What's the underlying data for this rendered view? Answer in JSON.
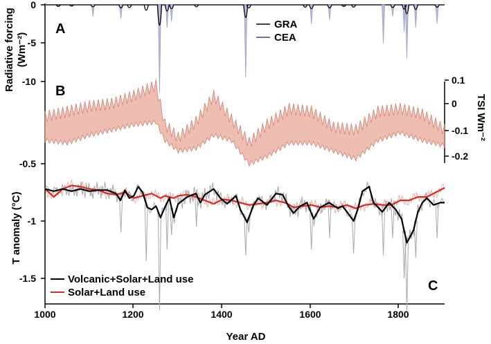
{
  "chart_data": [
    {
      "panel": "A",
      "type": "line",
      "ylabel": "Radiative forcing",
      "ylabel_unit": "(Wm⁻²)",
      "xlim": [
        1000,
        1900
      ],
      "ylim": [
        -11.5,
        0.5
      ],
      "yticks": [
        "0",
        "-5",
        "-10"
      ],
      "legend": [
        {
          "name": "GRA",
          "color": "#000000"
        },
        {
          "name": "CEA",
          "color": "#3b3f9a"
        }
      ],
      "events": [
        {
          "year": 1030,
          "depth": -0.6
        },
        {
          "year": 1060,
          "depth": -0.5
        },
        {
          "year": 1108,
          "depth": -0.7
        },
        {
          "year": 1171,
          "depth": -1.0
        },
        {
          "year": 1190,
          "depth": -0.9
        },
        {
          "year": 1228,
          "depth": -1.6
        },
        {
          "year": 1258,
          "depth": -5.5
        },
        {
          "year": 1275,
          "depth": -1.8
        },
        {
          "year": 1285,
          "depth": -1.2
        },
        {
          "year": 1341,
          "depth": -0.7
        },
        {
          "year": 1452,
          "depth": -3.5
        },
        {
          "year": 1459,
          "depth": -1.0
        },
        {
          "year": 1586,
          "depth": -0.8
        },
        {
          "year": 1600,
          "depth": -1.2
        },
        {
          "year": 1641,
          "depth": -1.0
        },
        {
          "year": 1673,
          "depth": -0.6
        },
        {
          "year": 1695,
          "depth": -0.8
        },
        {
          "year": 1783,
          "depth": -0.9
        },
        {
          "year": 1809,
          "depth": -1.3
        },
        {
          "year": 1815,
          "depth": -2.5
        },
        {
          "year": 1835,
          "depth": -1.4
        },
        {
          "year": 1883,
          "depth": -0.8
        }
      ],
      "cea_events": [
        {
          "year": 1108,
          "depth": -1.5
        },
        {
          "year": 1171,
          "depth": -1.8
        },
        {
          "year": 1258,
          "depth": -11.5
        },
        {
          "year": 1275,
          "depth": -3.0
        },
        {
          "year": 1285,
          "depth": -2.2
        },
        {
          "year": 1452,
          "depth": -9.5
        },
        {
          "year": 1600,
          "depth": -2.5
        },
        {
          "year": 1641,
          "depth": -2.0
        },
        {
          "year": 1762,
          "depth": -5.0
        },
        {
          "year": 1783,
          "depth": -1.5
        },
        {
          "year": 1809,
          "depth": -3.5
        },
        {
          "year": 1815,
          "depth": -7.0
        },
        {
          "year": 1835,
          "depth": -3.0
        },
        {
          "year": 1883,
          "depth": -2.5
        }
      ]
    },
    {
      "panel": "B",
      "type": "area",
      "ylabel": "TSI Wm⁻²",
      "xlim": [
        1000,
        1900
      ],
      "ylim": [
        -0.25,
        0.14
      ],
      "yticks": [
        "0.1",
        "0",
        "-0.1",
        "-0.2"
      ],
      "color": "#e8a898",
      "upper": [
        [
          1000,
          -0.05
        ],
        [
          1050,
          -0.03
        ],
        [
          1100,
          -0.01
        ],
        [
          1150,
          0.0
        ],
        [
          1200,
          0.03
        ],
        [
          1250,
          0.07
        ],
        [
          1270,
          -0.08
        ],
        [
          1300,
          -0.13
        ],
        [
          1340,
          -0.07
        ],
        [
          1380,
          0.03
        ],
        [
          1420,
          -0.06
        ],
        [
          1460,
          -0.15
        ],
        [
          1500,
          -0.08
        ],
        [
          1550,
          -0.02
        ],
        [
          1600,
          -0.03
        ],
        [
          1650,
          -0.09
        ],
        [
          1700,
          -0.1
        ],
        [
          1750,
          -0.03
        ],
        [
          1800,
          -0.02
        ],
        [
          1850,
          -0.04
        ],
        [
          1900,
          -0.1
        ]
      ],
      "lower": [
        [
          1000,
          -0.14
        ],
        [
          1050,
          -0.15
        ],
        [
          1100,
          -0.12
        ],
        [
          1150,
          -0.1
        ],
        [
          1200,
          -0.08
        ],
        [
          1250,
          -0.07
        ],
        [
          1270,
          -0.14
        ],
        [
          1300,
          -0.18
        ],
        [
          1340,
          -0.17
        ],
        [
          1380,
          -0.12
        ],
        [
          1420,
          -0.14
        ],
        [
          1460,
          -0.23
        ],
        [
          1500,
          -0.2
        ],
        [
          1550,
          -0.15
        ],
        [
          1600,
          -0.15
        ],
        [
          1650,
          -0.18
        ],
        [
          1700,
          -0.21
        ],
        [
          1750,
          -0.14
        ],
        [
          1800,
          -0.11
        ],
        [
          1850,
          -0.14
        ],
        [
          1900,
          -0.16
        ]
      ]
    },
    {
      "panel": "C",
      "type": "line",
      "xlabel": "Year AD",
      "ylabel": "T anomaly (°C)",
      "xlim": [
        1000,
        1900
      ],
      "ylim": [
        -1.7,
        -0.5
      ],
      "xticks": [
        "1000",
        "1200",
        "1400",
        "1600",
        "1800"
      ],
      "yticks": [
        "-0.5",
        "-1",
        "-1.5"
      ],
      "series": [
        {
          "name": "Volcanic+Solar+Land use",
          "color": "#000000",
          "points": [
            [
              1000,
              -0.72
            ],
            [
              1020,
              -0.74
            ],
            [
              1040,
              -0.72
            ],
            [
              1060,
              -0.74
            ],
            [
              1080,
              -0.72
            ],
            [
              1100,
              -0.74
            ],
            [
              1120,
              -0.73
            ],
            [
              1140,
              -0.73
            ],
            [
              1160,
              -0.76
            ],
            [
              1170,
              -0.82
            ],
            [
              1180,
              -0.73
            ],
            [
              1190,
              -0.8
            ],
            [
              1200,
              -0.78
            ],
            [
              1210,
              -0.7
            ],
            [
              1220,
              -0.75
            ],
            [
              1230,
              -0.88
            ],
            [
              1240,
              -0.9
            ],
            [
              1250,
              -0.87
            ],
            [
              1260,
              -0.97
            ],
            [
              1270,
              -0.88
            ],
            [
              1280,
              -0.8
            ],
            [
              1290,
              -0.97
            ],
            [
              1300,
              -0.85
            ],
            [
              1320,
              -0.79
            ],
            [
              1340,
              -0.76
            ],
            [
              1350,
              -0.84
            ],
            [
              1360,
              -0.77
            ],
            [
              1380,
              -0.72
            ],
            [
              1395,
              -0.8
            ],
            [
              1410,
              -0.85
            ],
            [
              1430,
              -0.78
            ],
            [
              1440,
              -0.9
            ],
            [
              1455,
              -1.01
            ],
            [
              1470,
              -0.86
            ],
            [
              1480,
              -0.8
            ],
            [
              1500,
              -0.86
            ],
            [
              1520,
              -0.76
            ],
            [
              1535,
              -0.77
            ],
            [
              1550,
              -0.88
            ],
            [
              1560,
              -0.93
            ],
            [
              1575,
              -0.87
            ],
            [
              1590,
              -0.84
            ],
            [
              1605,
              -0.98
            ],
            [
              1620,
              -0.88
            ],
            [
              1640,
              -0.84
            ],
            [
              1660,
              -0.89
            ],
            [
              1670,
              -0.87
            ],
            [
              1680,
              -0.92
            ],
            [
              1695,
              -1.0
            ],
            [
              1705,
              -0.89
            ],
            [
              1715,
              -0.74
            ],
            [
              1730,
              -0.7
            ],
            [
              1740,
              -0.84
            ],
            [
              1760,
              -0.92
            ],
            [
              1775,
              -0.84
            ],
            [
              1790,
              -0.9
            ],
            [
              1803,
              -0.98
            ],
            [
              1815,
              -1.19
            ],
            [
              1830,
              -1.08
            ],
            [
              1840,
              -0.92
            ],
            [
              1850,
              -0.84
            ],
            [
              1860,
              -0.8
            ],
            [
              1875,
              -0.86
            ],
            [
              1890,
              -0.84
            ],
            [
              1900,
              -0.84
            ]
          ]
        },
        {
          "name": "Solar+Land use",
          "color": "#d42a2a",
          "points": [
            [
              1000,
              -0.72
            ],
            [
              1020,
              -0.79
            ],
            [
              1040,
              -0.72
            ],
            [
              1060,
              -0.69
            ],
            [
              1080,
              -0.7
            ],
            [
              1100,
              -0.72
            ],
            [
              1120,
              -0.73
            ],
            [
              1140,
              -0.76
            ],
            [
              1160,
              -0.77
            ],
            [
              1180,
              -0.75
            ],
            [
              1200,
              -0.8
            ],
            [
              1220,
              -0.78
            ],
            [
              1240,
              -0.76
            ],
            [
              1260,
              -0.8
            ],
            [
              1270,
              -0.78
            ],
            [
              1290,
              -0.8
            ],
            [
              1300,
              -0.78
            ],
            [
              1320,
              -0.77
            ],
            [
              1340,
              -0.79
            ],
            [
              1360,
              -0.82
            ],
            [
              1380,
              -0.85
            ],
            [
              1400,
              -0.81
            ],
            [
              1420,
              -0.82
            ],
            [
              1440,
              -0.84
            ],
            [
              1460,
              -0.86
            ],
            [
              1480,
              -0.85
            ],
            [
              1500,
              -0.84
            ],
            [
              1520,
              -0.82
            ],
            [
              1540,
              -0.84
            ],
            [
              1560,
              -0.88
            ],
            [
              1580,
              -0.87
            ],
            [
              1600,
              -0.86
            ],
            [
              1620,
              -0.88
            ],
            [
              1640,
              -0.87
            ],
            [
              1660,
              -0.88
            ],
            [
              1680,
              -0.86
            ],
            [
              1700,
              -0.89
            ],
            [
              1720,
              -0.86
            ],
            [
              1740,
              -0.85
            ],
            [
              1760,
              -0.86
            ],
            [
              1780,
              -0.86
            ],
            [
              1800,
              -0.82
            ],
            [
              1820,
              -0.82
            ],
            [
              1840,
              -0.79
            ],
            [
              1860,
              -0.79
            ],
            [
              1880,
              -0.75
            ],
            [
              1900,
              -0.71
            ]
          ]
        }
      ],
      "spikes": [
        {
          "year": 1171,
          "depth": -1.1
        },
        {
          "year": 1228,
          "depth": -1.35
        },
        {
          "year": 1258,
          "depth": -1.78
        },
        {
          "year": 1275,
          "depth": -1.25
        },
        {
          "year": 1285,
          "depth": -1.12
        },
        {
          "year": 1341,
          "depth": -1.05
        },
        {
          "year": 1452,
          "depth": -1.3
        },
        {
          "year": 1459,
          "depth": -1.1
        },
        {
          "year": 1600,
          "depth": -1.25
        },
        {
          "year": 1641,
          "depth": -1.15
        },
        {
          "year": 1695,
          "depth": -1.28
        },
        {
          "year": 1762,
          "depth": -1.3
        },
        {
          "year": 1783,
          "depth": -1.15
        },
        {
          "year": 1809,
          "depth": -1.5
        },
        {
          "year": 1815,
          "depth": -1.78
        },
        {
          "year": 1835,
          "depth": -1.32
        },
        {
          "year": 1883,
          "depth": -1.15
        }
      ]
    }
  ],
  "labels": {
    "panel_a": "A",
    "panel_b": "B",
    "panel_c": "C",
    "radiative_line1": "Radiative forcing",
    "radiative_line2": "(Wm⁻²)",
    "t_anomaly": "T anomaly (°C)",
    "tsi": "TSI Wm⁻²",
    "year_ad": "Year AD",
    "legend_gra": "GRA",
    "legend_cea": "CEA",
    "legend_vsl": "Volcanic+Solar+Land use",
    "legend_sl": "Solar+Land use"
  },
  "ticks": {
    "a0": "0",
    "a5": "-5",
    "a10": "-10",
    "b01": "0.1",
    "b0": "0",
    "bm01": "-0.1",
    "bm02": "-0.2",
    "c05": "-0.5",
    "c1": "-1",
    "c15": "-1.5",
    "x1000": "1000",
    "x1200": "1200",
    "x1400": "1400",
    "x1600": "1600",
    "x1800": "1800"
  }
}
